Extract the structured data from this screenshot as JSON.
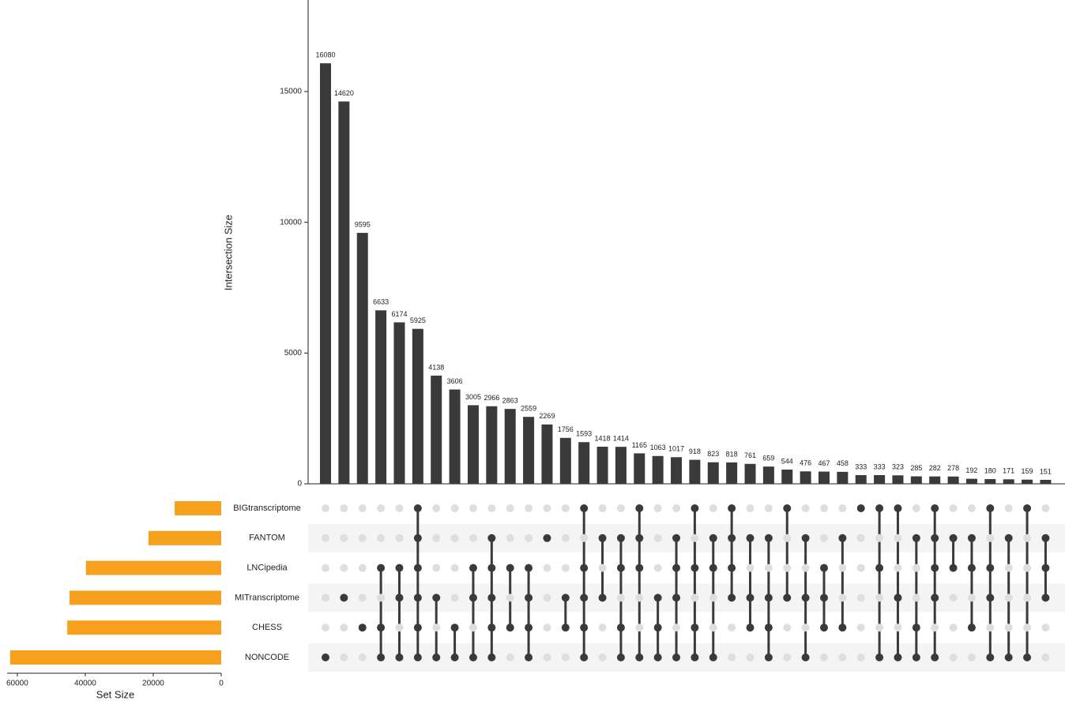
{
  "chart_data": {
    "type": "upset",
    "y_label": "Intersection Size",
    "x_label": "Set Size",
    "bar_color": "#3a3a3a",
    "set_color": "#f7a01e",
    "values": [
      16080,
      14620,
      9595,
      6633,
      6174,
      5925,
      4138,
      3606,
      3005,
      2966,
      2863,
      2559,
      2269,
      1756,
      1593,
      1418,
      1414,
      1165,
      1063,
      1017,
      918,
      823,
      818,
      761,
      659,
      544,
      476,
      467,
      458,
      333,
      333,
      323,
      285,
      282,
      278,
      192,
      180,
      171,
      159,
      151
    ],
    "ylim": [
      0,
      18500
    ],
    "yticks": [
      0,
      5000,
      10000,
      15000
    ],
    "sets": [
      "BIGtranscriptome",
      "FANTOM",
      "LNCipedia",
      "MITranscriptome",
      "CHESS",
      "NONCODE"
    ],
    "set_sizes": [
      13700,
      21400,
      39800,
      44650,
      45300,
      62100
    ],
    "xlim": [
      0,
      63000
    ],
    "xticks": [
      0,
      20000,
      40000,
      60000
    ],
    "membership": [
      [
        0,
        0,
        0,
        0,
        0,
        1,
        0,
        0,
        0,
        0,
        0,
        0,
        0,
        0,
        1,
        0,
        0,
        1,
        0,
        0,
        1,
        0,
        1,
        0,
        0,
        1,
        0,
        0,
        0,
        1,
        1,
        1,
        0,
        1,
        0,
        0,
        1,
        0,
        1,
        0
      ],
      [
        0,
        0,
        0,
        0,
        0,
        1,
        0,
        0,
        0,
        1,
        0,
        0,
        1,
        0,
        0,
        1,
        1,
        1,
        0,
        1,
        0,
        1,
        1,
        1,
        1,
        0,
        1,
        0,
        1,
        0,
        0,
        0,
        1,
        1,
        1,
        1,
        0,
        1,
        0,
        1
      ],
      [
        0,
        0,
        0,
        1,
        1,
        1,
        0,
        0,
        1,
        1,
        1,
        1,
        0,
        0,
        1,
        0,
        1,
        1,
        0,
        1,
        1,
        1,
        1,
        0,
        0,
        0,
        0,
        1,
        0,
        0,
        1,
        0,
        0,
        1,
        1,
        1,
        1,
        0,
        0,
        1
      ],
      [
        0,
        1,
        0,
        0,
        1,
        1,
        1,
        0,
        1,
        1,
        0,
        1,
        0,
        1,
        1,
        1,
        0,
        0,
        1,
        1,
        0,
        0,
        1,
        1,
        1,
        1,
        1,
        1,
        0,
        0,
        0,
        1,
        0,
        1,
        0,
        0,
        1,
        0,
        0,
        1
      ],
      [
        0,
        0,
        1,
        1,
        0,
        1,
        0,
        1,
        0,
        1,
        1,
        1,
        0,
        1,
        1,
        0,
        1,
        0,
        1,
        0,
        1,
        0,
        0,
        1,
        1,
        0,
        0,
        1,
        1,
        0,
        0,
        0,
        1,
        0,
        0,
        1,
        0,
        0,
        0,
        0
      ],
      [
        1,
        0,
        0,
        1,
        1,
        1,
        1,
        1,
        1,
        1,
        0,
        1,
        0,
        0,
        1,
        0,
        1,
        1,
        1,
        1,
        1,
        1,
        0,
        0,
        1,
        0,
        1,
        0,
        0,
        0,
        1,
        1,
        1,
        1,
        0,
        0,
        1,
        1,
        1,
        0
      ]
    ]
  }
}
